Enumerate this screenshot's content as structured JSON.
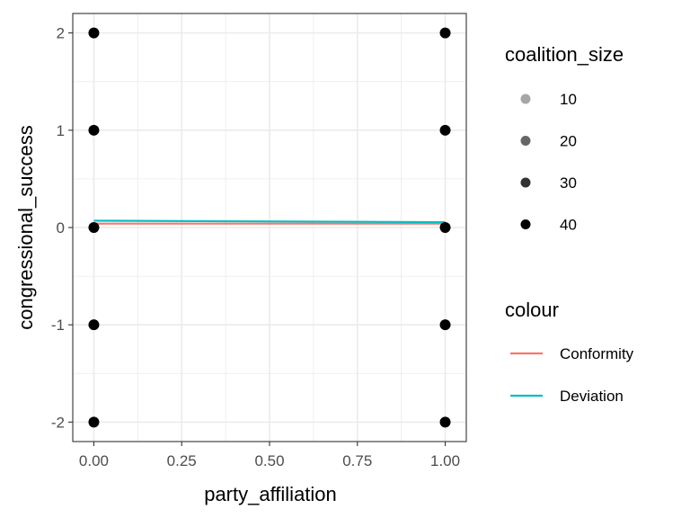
{
  "chart_data": {
    "type": "scatter",
    "xlabel": "party_affiliation",
    "ylabel": "congressional_success",
    "xlim": [
      -0.06,
      1.06
    ],
    "ylim": [
      -2.2,
      2.2
    ],
    "x_ticks": [
      0,
      0.25,
      0.5,
      0.75,
      1
    ],
    "x_tick_labels": [
      "0.00",
      "0.25",
      "0.50",
      "0.75",
      "1.00"
    ],
    "y_ticks": [
      -2,
      -1,
      0,
      1,
      2
    ],
    "y_tick_labels": [
      "-2",
      "-1",
      "0",
      "1",
      "2"
    ],
    "grid": true,
    "points": [
      {
        "x": 0,
        "y": 2
      },
      {
        "x": 0,
        "y": 1
      },
      {
        "x": 0,
        "y": 0
      },
      {
        "x": 0,
        "y": -1
      },
      {
        "x": 0,
        "y": -2
      },
      {
        "x": 1,
        "y": 2
      },
      {
        "x": 1,
        "y": 1
      },
      {
        "x": 1,
        "y": 0
      },
      {
        "x": 1,
        "y": -1
      },
      {
        "x": 1,
        "y": -2
      }
    ],
    "series": [
      {
        "name": "Conformity",
        "color": "#F8766D",
        "x": [
          0,
          1
        ],
        "y": [
          0.04,
          0.04
        ]
      },
      {
        "name": "Deviation",
        "color": "#00BFC4",
        "x": [
          0,
          1
        ],
        "y": [
          0.07,
          0.055
        ]
      }
    ],
    "legend_placement": "right",
    "legends": {
      "size": {
        "title": "coalition_size",
        "items": [
          {
            "label": "10",
            "alpha": 0.35
          },
          {
            "label": "20",
            "alpha": 0.6
          },
          {
            "label": "30",
            "alpha": 0.8
          },
          {
            "label": "40",
            "alpha": 1.0
          }
        ]
      },
      "colour": {
        "title": "colour",
        "items": [
          {
            "label": "Conformity",
            "color": "#F8766D"
          },
          {
            "label": "Deviation",
            "color": "#00BFC4"
          }
        ]
      }
    }
  }
}
